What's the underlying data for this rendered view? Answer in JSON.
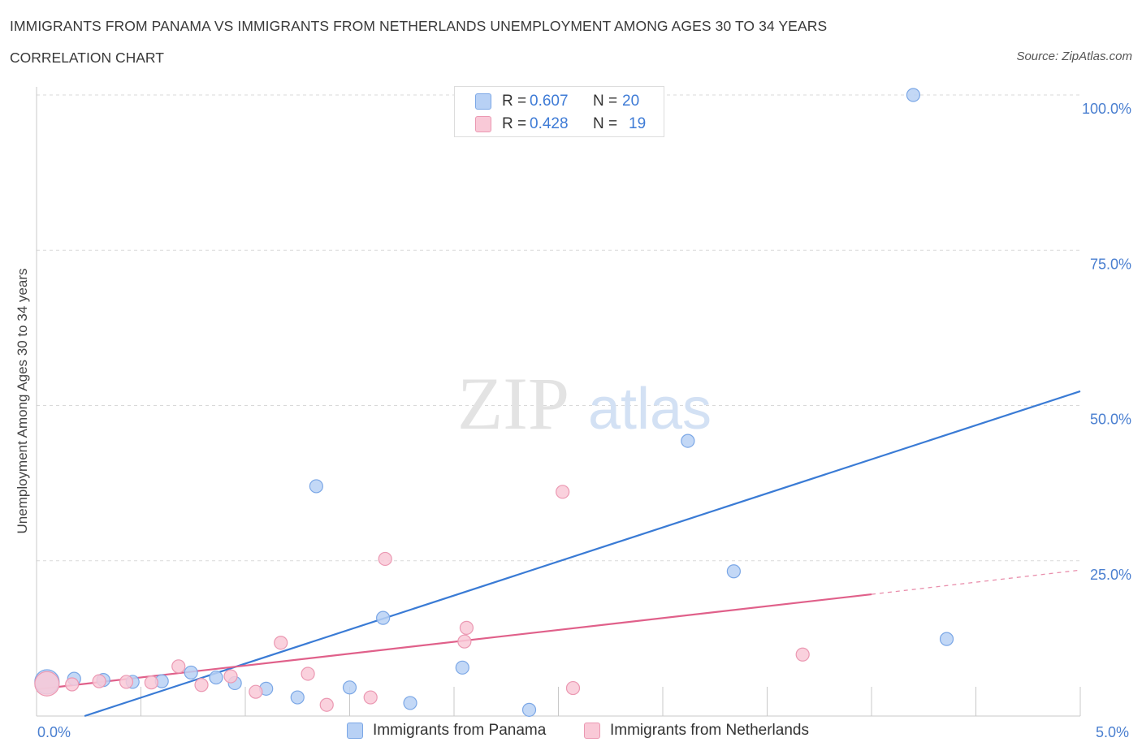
{
  "header": {
    "title": "IMMIGRANTS FROM PANAMA VS IMMIGRANTS FROM NETHERLANDS UNEMPLOYMENT AMONG AGES 30 TO 34 YEARS",
    "subtitle": "CORRELATION CHART",
    "source": "Source: ZipAtlas.com"
  },
  "watermark": {
    "zip": "ZIP",
    "atlas": "atlas"
  },
  "legend": {
    "r_label": "R =",
    "n_label": "N =",
    "rows": [
      {
        "r": "0.607",
        "n": "20",
        "color": "#a9c8f5",
        "border": "#6f9fe0"
      },
      {
        "r": "0.428",
        "n": "19",
        "color": "#f7c3d2",
        "border": "#e48aa6"
      }
    ]
  },
  "chart_data": {
    "type": "scatter",
    "ylabel": "Unemployment Among Ages 30 to 34 years",
    "xlabel": "",
    "xlim": [
      0,
      5
    ],
    "ylim": [
      0,
      100
    ],
    "x_tick_labels": [
      "0.0%",
      "5.0%"
    ],
    "y_tick_labels": [
      "100.0%",
      "75.0%",
      "50.0%",
      "25.0%"
    ],
    "y_ticks": [
      100,
      75,
      50,
      25
    ],
    "grid": true,
    "series": [
      {
        "name": "Immigrants from Panama",
        "color": "#3a7bd5",
        "fill": "#b8d1f5",
        "stroke": "#7ba7e6",
        "points": [
          [
            0.05,
            5.5
          ],
          [
            0.18,
            6.0
          ],
          [
            0.32,
            5.8
          ],
          [
            0.46,
            5.5
          ],
          [
            0.6,
            5.6
          ],
          [
            0.74,
            7.0
          ],
          [
            0.86,
            6.2
          ],
          [
            0.95,
            5.3
          ],
          [
            1.1,
            4.4
          ],
          [
            1.25,
            3.0
          ],
          [
            1.34,
            37.0
          ],
          [
            1.5,
            4.6
          ],
          [
            1.66,
            15.8
          ],
          [
            1.79,
            2.1
          ],
          [
            2.04,
            7.8
          ],
          [
            2.36,
            1.0
          ],
          [
            3.12,
            44.3
          ],
          [
            3.34,
            23.3
          ],
          [
            4.2,
            100.0
          ],
          [
            4.36,
            12.4
          ]
        ],
        "trend": {
          "x": [
            0.23,
            5.0
          ],
          "y": [
            0.0,
            52.3
          ]
        }
      },
      {
        "name": "Immigrants from Netherlands",
        "color": "#e0608a",
        "fill": "#f9c9d7",
        "stroke": "#eb98b2",
        "points": [
          [
            0.05,
            5.2
          ],
          [
            0.17,
            5.1
          ],
          [
            0.3,
            5.6
          ],
          [
            0.43,
            5.5
          ],
          [
            0.55,
            5.4
          ],
          [
            0.68,
            8.0
          ],
          [
            0.79,
            5.0
          ],
          [
            0.93,
            6.4
          ],
          [
            1.05,
            3.9
          ],
          [
            1.17,
            11.8
          ],
          [
            1.3,
            6.8
          ],
          [
            1.39,
            1.8
          ],
          [
            1.6,
            3.0
          ],
          [
            1.67,
            25.3
          ],
          [
            2.06,
            14.2
          ],
          [
            2.05,
            12.0
          ],
          [
            2.52,
            36.1
          ],
          [
            2.57,
            4.5
          ],
          [
            3.67,
            9.9
          ]
        ],
        "trend": {
          "x": [
            0.0,
            4.0
          ],
          "y": [
            4.3,
            19.6
          ]
        },
        "trend_dashed": {
          "x": [
            4.0,
            5.0
          ],
          "y": [
            19.6,
            23.5
          ]
        }
      }
    ]
  }
}
